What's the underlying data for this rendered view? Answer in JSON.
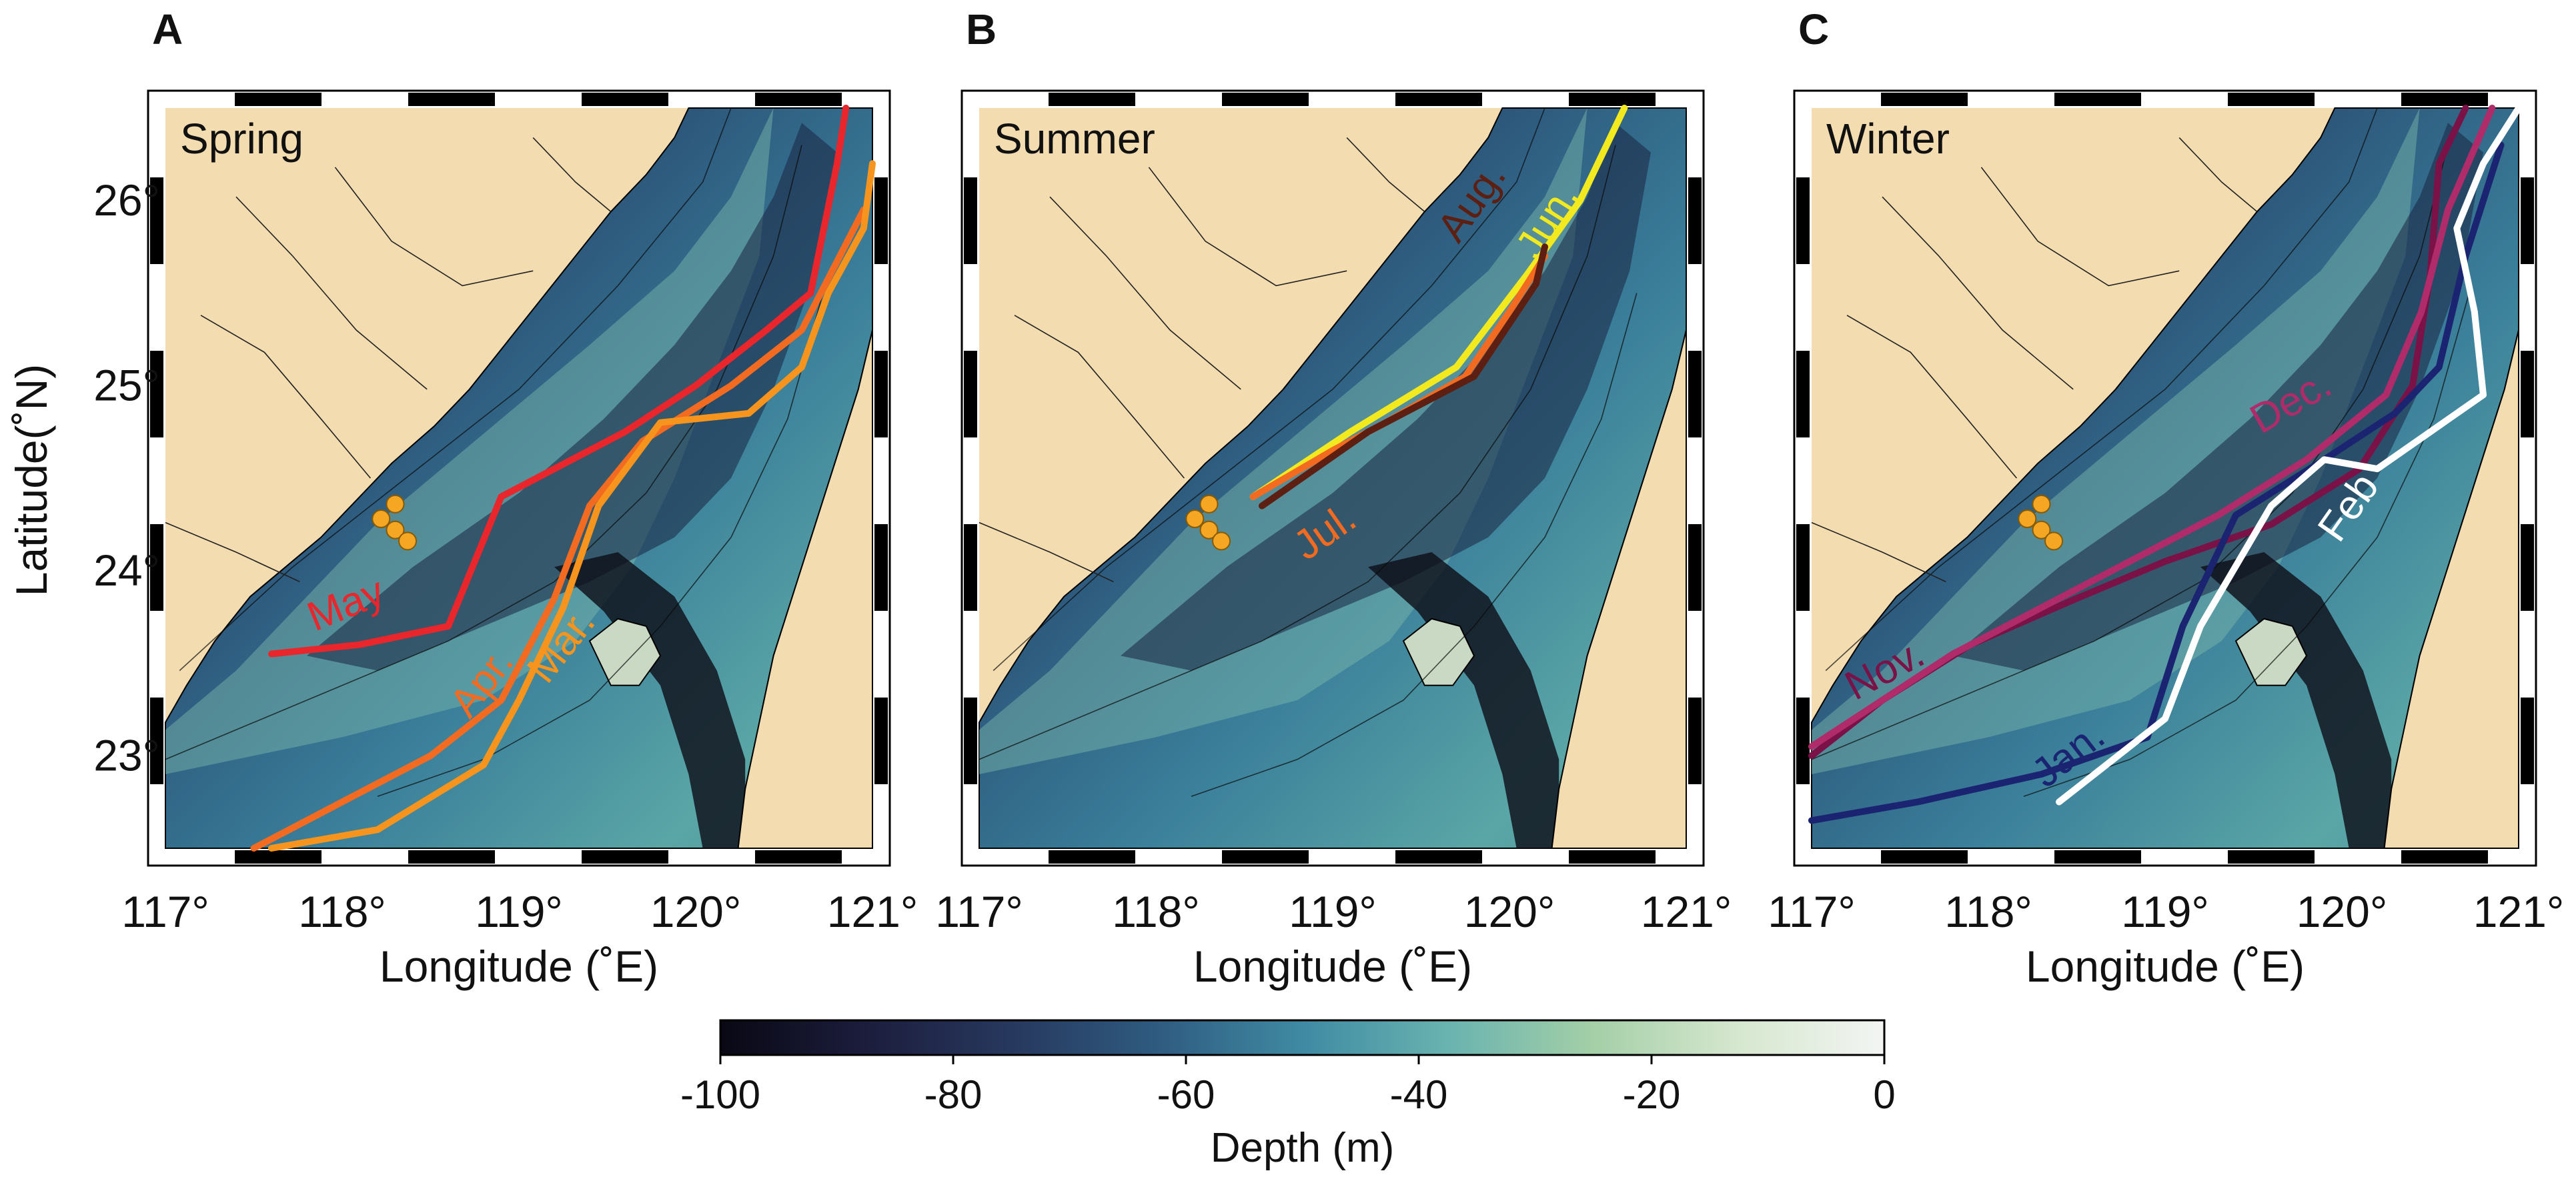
{
  "figure": {
    "colors": {
      "land": "#f2dcb0",
      "land_border": "#000000",
      "river": "#222222",
      "marker": "#f5a623",
      "frame_dark": "#000000",
      "frame_light": "#ffffff"
    },
    "axes": {
      "xlabel": "Longitude (˚E)",
      "ylabel": "Latitude(˚N)",
      "xlim": [
        117,
        121
      ],
      "ylim": [
        22.5,
        26.5
      ],
      "xticks": [
        117,
        118,
        119,
        120,
        121
      ],
      "xtick_labels": [
        "117°",
        "118°",
        "119°",
        "120°",
        "121°"
      ],
      "yticks": [
        23,
        24,
        25,
        26
      ],
      "ytick_labels": [
        "23°",
        "24°",
        "25°",
        "26°"
      ]
    },
    "panels": [
      {
        "letter": "A",
        "season": "Spring",
        "fronts": [
          {
            "label": "May",
            "color": "#e8262b",
            "label_lon": 118.05,
            "label_lat": 23.75,
            "label_rot": -22,
            "points": [
              [
                117.6,
                23.55
              ],
              [
                118.1,
                23.6
              ],
              [
                118.6,
                23.7
              ],
              [
                118.9,
                24.4
              ],
              [
                119.3,
                24.6
              ],
              [
                119.6,
                24.75
              ],
              [
                120.0,
                25.0
              ],
              [
                120.4,
                25.3
              ],
              [
                120.65,
                25.5
              ],
              [
                120.8,
                26.2
              ],
              [
                120.85,
                26.5
              ]
            ]
          },
          {
            "label": "Apr.",
            "color": "#f26b21",
            "label_lon": 118.85,
            "label_lat": 23.35,
            "label_rot": -52,
            "points": [
              [
                117.5,
                22.5
              ],
              [
                118.0,
                22.75
              ],
              [
                118.5,
                23.0
              ],
              [
                118.9,
                23.3
              ],
              [
                119.2,
                23.85
              ],
              [
                119.4,
                24.35
              ],
              [
                119.7,
                24.7
              ],
              [
                120.2,
                25.0
              ],
              [
                120.6,
                25.3
              ],
              [
                120.95,
                25.95
              ]
            ]
          },
          {
            "label": "Mar.",
            "color": "#f7941d",
            "label_lon": 119.3,
            "label_lat": 23.55,
            "label_rot": -52,
            "points": [
              [
                117.6,
                22.5
              ],
              [
                118.2,
                22.6
              ],
              [
                118.8,
                22.95
              ],
              [
                119.0,
                23.3
              ],
              [
                119.25,
                23.8
              ],
              [
                119.45,
                24.35
              ],
              [
                119.8,
                24.8
              ],
              [
                120.3,
                24.85
              ],
              [
                120.6,
                25.1
              ],
              [
                120.75,
                25.5
              ],
              [
                120.95,
                25.85
              ],
              [
                121.0,
                26.2
              ]
            ]
          }
        ]
      },
      {
        "letter": "B",
        "season": "Summer",
        "fronts": [
          {
            "label": "Jun.",
            "color": "#f2ea1f",
            "label_lon": 120.28,
            "label_lat": 25.85,
            "label_rot": -58,
            "points": [
              [
                118.55,
                24.4
              ],
              [
                119.1,
                24.75
              ],
              [
                119.7,
                25.1
              ],
              [
                120.1,
                25.6
              ],
              [
                120.4,
                26.0
              ],
              [
                120.65,
                26.5
              ]
            ]
          },
          {
            "label": "Jul.",
            "color": "#f26b21",
            "label_lon": 119.0,
            "label_lat": 24.15,
            "label_rot": -35,
            "points": [
              [
                118.55,
                24.4
              ],
              [
                119.0,
                24.65
              ],
              [
                119.3,
                24.8
              ],
              [
                119.75,
                25.05
              ],
              [
                120.0,
                25.4
              ],
              [
                120.2,
                25.7
              ]
            ]
          },
          {
            "label": "Aug.",
            "color": "#5c1f12",
            "label_lon": 119.85,
            "label_lat": 25.95,
            "label_rot": -55,
            "points": [
              [
                118.6,
                24.35
              ],
              [
                119.2,
                24.75
              ],
              [
                119.8,
                25.05
              ],
              [
                120.15,
                25.55
              ],
              [
                120.2,
                25.75
              ]
            ]
          }
        ]
      },
      {
        "letter": "C",
        "season": "Winter",
        "fronts": [
          {
            "label": "Nov.",
            "color": "#7a1248",
            "label_lon": 117.45,
            "label_lat": 23.4,
            "label_rot": -28,
            "points": [
              [
                117.0,
                23.0
              ],
              [
                117.4,
                23.3
              ],
              [
                117.9,
                23.6
              ],
              [
                118.5,
                23.85
              ],
              [
                119.0,
                24.05
              ],
              [
                119.6,
                24.25
              ],
              [
                120.1,
                24.55
              ],
              [
                120.4,
                25.0
              ],
              [
                120.5,
                25.6
              ],
              [
                120.55,
                26.2
              ],
              [
                120.7,
                26.5
              ]
            ]
          },
          {
            "label": "Dec.",
            "color": "#b02b6a",
            "label_lon": 119.75,
            "label_lat": 24.85,
            "label_rot": -30,
            "points": [
              [
                117.0,
                23.05
              ],
              [
                117.8,
                23.55
              ],
              [
                118.6,
                23.95
              ],
              [
                119.3,
                24.3
              ],
              [
                119.8,
                24.6
              ],
              [
                120.25,
                24.95
              ],
              [
                120.45,
                25.4
              ],
              [
                120.6,
                25.95
              ],
              [
                120.85,
                26.5
              ]
            ]
          },
          {
            "label": "Jan.",
            "color": "#1b2470",
            "label_lon": 118.5,
            "label_lat": 22.95,
            "label_rot": -38,
            "points": [
              [
                117.0,
                22.65
              ],
              [
                117.6,
                22.75
              ],
              [
                118.3,
                22.9
              ],
              [
                118.9,
                23.1
              ],
              [
                119.1,
                23.7
              ],
              [
                119.4,
                24.3
              ],
              [
                119.9,
                24.6
              ],
              [
                120.3,
                24.85
              ],
              [
                120.55,
                25.1
              ],
              [
                120.7,
                25.7
              ],
              [
                120.9,
                26.3
              ]
            ]
          },
          {
            "label": "Feb",
            "color": "#ffffff",
            "label_lon": 120.1,
            "label_lat": 24.3,
            "label_rot": -55,
            "points": [
              [
                118.4,
                22.75
              ],
              [
                119.0,
                23.2
              ],
              [
                119.2,
                23.7
              ],
              [
                119.6,
                24.35
              ],
              [
                119.9,
                24.6
              ],
              [
                120.2,
                24.55
              ],
              [
                120.5,
                24.75
              ],
              [
                120.8,
                24.95
              ],
              [
                120.75,
                25.4
              ],
              [
                120.65,
                25.85
              ],
              [
                120.8,
                26.2
              ],
              [
                121.0,
                26.5
              ]
            ]
          }
        ]
      }
    ],
    "stations": [
      [
        118.22,
        24.28
      ],
      [
        118.3,
        24.22
      ],
      [
        118.37,
        24.16
      ],
      [
        118.3,
        24.36
      ]
    ],
    "colorbar": {
      "label": "Depth (m)",
      "min": -100,
      "max": 0,
      "ticks": [
        -100,
        -80,
        -60,
        -40,
        -20,
        0
      ],
      "tick_labels": [
        "-100",
        "-80",
        "-60",
        "-40",
        "-20",
        "0"
      ],
      "stops": [
        "#090814",
        "#1c1d3d",
        "#27385e",
        "#2f5b80",
        "#3f8aa3",
        "#69b3b0",
        "#a4cfa7",
        "#d6e7cf",
        "#f3f5f3"
      ]
    }
  }
}
